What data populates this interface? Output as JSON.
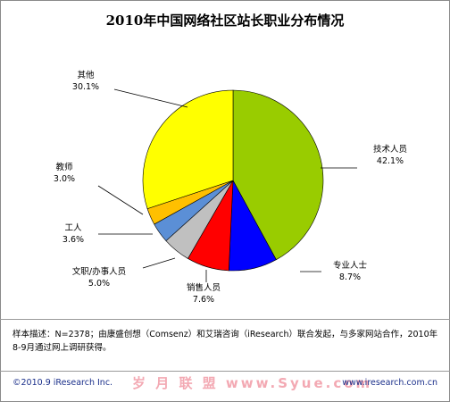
{
  "chart_data": {
    "type": "pie",
    "title": "2010年中国网络社区站长职业分布情况",
    "slices": [
      {
        "label": "技术人员",
        "value": 42.1,
        "value_label": "42.1%",
        "color": "#99cc00"
      },
      {
        "label": "专业人士",
        "value": 8.7,
        "value_label": "8.7%",
        "color": "#0000ff"
      },
      {
        "label": "销售人员",
        "value": 7.6,
        "value_label": "7.6%",
        "color": "#ff0000"
      },
      {
        "label": "文职/办事人员",
        "value": 5.0,
        "value_label": "5.0%",
        "color": "#c0c0c0"
      },
      {
        "label": "工人",
        "value": 3.6,
        "value_label": "3.6%",
        "color": "#5b8fd6"
      },
      {
        "label": "教师",
        "value": 3.0,
        "value_label": "3.0%",
        "color": "#ffc000"
      },
      {
        "label": "其他",
        "value": 30.1,
        "value_label": "30.1%",
        "color": "#ffff00"
      }
    ],
    "legend": "none",
    "start_angle_deg": 0,
    "direction": "clockwise"
  },
  "note": "样本描述：N=2378；由康盛创想（Comsenz）和艾瑞咨询（iResearch）联合发起，与多家网站合作，2010年8-9月通过网上调研获得。",
  "footer": {
    "copyright": "©2010.9 iResearch Inc.",
    "watermark": "岁 月 联 盟  www.Syue.com",
    "url": "www.iresearch.com.cn"
  }
}
